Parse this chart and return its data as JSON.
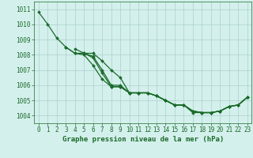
{
  "title": "Graphe pression niveau de la mer (hPa)",
  "bg_color": "#d4f0ec",
  "grid_color": "#aacfcb",
  "line_color": "#1a6b2a",
  "xlim": [
    -0.5,
    23.5
  ],
  "ylim": [
    1003.5,
    1011.5
  ],
  "yticks": [
    1004,
    1005,
    1006,
    1007,
    1008,
    1009,
    1010,
    1011
  ],
  "xticks": [
    0,
    1,
    2,
    3,
    4,
    5,
    6,
    7,
    8,
    9,
    10,
    11,
    12,
    13,
    14,
    15,
    16,
    17,
    18,
    19,
    20,
    21,
    22,
    23
  ],
  "lines": [
    [
      1010.8,
      1010.0,
      1009.1,
      1008.5,
      1008.1,
      1008.0,
      1007.3,
      1006.4,
      1005.9,
      1005.9,
      1005.5,
      1005.5,
      1005.5,
      1005.3,
      1005.0,
      1004.7,
      1004.7,
      1004.2,
      1004.2,
      1004.2,
      1004.3,
      1004.6,
      1004.7,
      1005.2
    ],
    [
      null,
      null,
      null,
      1008.5,
      1008.1,
      1008.1,
      1007.8,
      1006.8,
      1005.9,
      1005.9,
      1005.5,
      1005.5,
      1005.5,
      1005.3,
      1005.0,
      1004.7,
      1004.7,
      1004.3,
      1004.2,
      1004.2,
      1004.3,
      1004.6,
      1004.7,
      1005.2
    ],
    [
      null,
      null,
      null,
      null,
      1008.4,
      1008.1,
      1007.9,
      1007.0,
      1006.0,
      1006.0,
      1005.5,
      1005.5,
      1005.5,
      1005.3,
      1005.0,
      1004.7,
      1004.7,
      1004.3,
      1004.2,
      1004.2,
      1004.3,
      1004.6,
      1004.7,
      1005.2
    ],
    [
      null,
      null,
      null,
      null,
      null,
      1008.1,
      1008.1,
      1007.6,
      1007.0,
      1006.5,
      1005.5,
      1005.5,
      1005.5,
      1005.3,
      1005.0,
      1004.7,
      1004.7,
      1004.3,
      1004.2,
      1004.2,
      1004.3,
      1004.6,
      1004.7,
      1005.2
    ]
  ],
  "marker": "D",
  "marker_size": 2.0,
  "line_width": 0.9,
  "tick_fontsize": 5.5,
  "xlabel_fontsize": 6.5
}
